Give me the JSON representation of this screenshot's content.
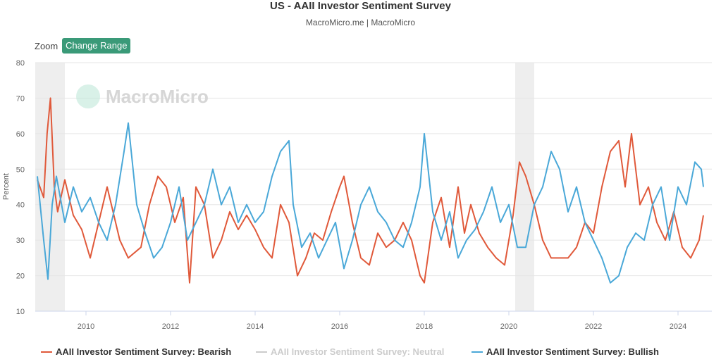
{
  "header": {
    "title": "US - AAII Investor Sentiment Survey",
    "subtitle": "MacroMicro.me | MacroMicro"
  },
  "toolbar": {
    "zoom_label": "Zoom",
    "range_button": "Change Range"
  },
  "watermark": "MacroMicro",
  "colors": {
    "bearish": "#e0593a",
    "neutral": "#cccccc",
    "bullish": "#4aa8d8",
    "accent": "#3a9a78",
    "shade": "#eeeeee"
  },
  "chart_data": {
    "type": "line",
    "title": "US - AAII Investor Sentiment Survey",
    "subtitle": "MacroMicro.me | MacroMicro",
    "xlabel": "",
    "ylabel": "Percent",
    "xlim": [
      2008.8,
      2024.8
    ],
    "ylim": [
      10,
      80
    ],
    "y_ticks": [
      10,
      20,
      30,
      40,
      50,
      60,
      70,
      80
    ],
    "x_ticks": [
      "2010",
      "2012",
      "2014",
      "2016",
      "2018",
      "2020",
      "2022",
      "2024"
    ],
    "grid": true,
    "legend_position": "bottom",
    "shaded_periods": [
      {
        "start": 2008.8,
        "end": 2009.5
      },
      {
        "start": 2020.15,
        "end": 2020.6
      }
    ],
    "series": [
      {
        "name": "AAII Investor Sentiment Survey: Bearish",
        "visible": true,
        "x": [
          2008.85,
          2009.0,
          2009.08,
          2009.16,
          2009.25,
          2009.33,
          2009.5,
          2009.7,
          2009.9,
          2010.1,
          2010.3,
          2010.5,
          2010.6,
          2010.8,
          2011.0,
          2011.3,
          2011.5,
          2011.7,
          2011.9,
          2012.1,
          2012.3,
          2012.45,
          2012.6,
          2012.8,
          2013.0,
          2013.2,
          2013.4,
          2013.6,
          2013.8,
          2014.0,
          2014.2,
          2014.4,
          2014.6,
          2014.8,
          2015.0,
          2015.2,
          2015.4,
          2015.6,
          2015.8,
          2016.0,
          2016.1,
          2016.3,
          2016.5,
          2016.7,
          2016.9,
          2017.1,
          2017.3,
          2017.5,
          2017.7,
          2017.9,
          2018.0,
          2018.2,
          2018.4,
          2018.6,
          2018.8,
          2018.95,
          2019.1,
          2019.3,
          2019.5,
          2019.7,
          2019.9,
          2020.1,
          2020.25,
          2020.4,
          2020.6,
          2020.8,
          2021.0,
          2021.2,
          2021.4,
          2021.6,
          2021.8,
          2022.0,
          2022.2,
          2022.4,
          2022.6,
          2022.75,
          2022.9,
          2023.1,
          2023.3,
          2023.5,
          2023.7,
          2023.9,
          2024.1,
          2024.3,
          2024.5,
          2024.6
        ],
        "y": [
          47,
          42,
          60,
          70,
          45,
          38,
          47,
          37,
          33,
          25,
          35,
          45,
          40,
          30,
          25,
          28,
          40,
          48,
          45,
          35,
          42,
          18,
          45,
          40,
          25,
          30,
          38,
          33,
          37,
          33,
          28,
          25,
          40,
          35,
          20,
          25,
          32,
          30,
          38,
          45,
          48,
          35,
          25,
          23,
          32,
          28,
          30,
          35,
          30,
          20,
          18,
          35,
          42,
          28,
          45,
          32,
          40,
          32,
          28,
          25,
          23,
          37,
          52,
          48,
          40,
          30,
          25,
          25,
          25,
          28,
          35,
          32,
          45,
          55,
          58,
          45,
          60,
          40,
          45,
          35,
          30,
          38,
          28,
          25,
          30,
          37
        ]
      },
      {
        "name": "AAII Investor Sentiment Survey: Neutral",
        "visible": false,
        "x": [],
        "y": []
      },
      {
        "name": "AAII Investor Sentiment Survey: Bullish",
        "visible": true,
        "x": [
          2008.85,
          2009.0,
          2009.1,
          2009.2,
          2009.3,
          2009.5,
          2009.7,
          2009.9,
          2010.1,
          2010.3,
          2010.5,
          2010.7,
          2010.9,
          2011.0,
          2011.2,
          2011.4,
          2011.6,
          2011.8,
          2012.0,
          2012.2,
          2012.4,
          2012.6,
          2012.8,
          2013.0,
          2013.2,
          2013.4,
          2013.6,
          2013.8,
          2014.0,
          2014.2,
          2014.4,
          2014.6,
          2014.8,
          2014.9,
          2015.1,
          2015.3,
          2015.5,
          2015.7,
          2015.9,
          2016.1,
          2016.3,
          2016.5,
          2016.7,
          2016.9,
          2017.1,
          2017.3,
          2017.5,
          2017.7,
          2017.9,
          2018.0,
          2018.2,
          2018.4,
          2018.6,
          2018.8,
          2019.0,
          2019.2,
          2019.4,
          2019.6,
          2019.8,
          2020.0,
          2020.2,
          2020.4,
          2020.6,
          2020.8,
          2021.0,
          2021.2,
          2021.4,
          2021.6,
          2021.8,
          2022.0,
          2022.2,
          2022.4,
          2022.6,
          2022.8,
          2023.0,
          2023.2,
          2023.4,
          2023.6,
          2023.8,
          2024.0,
          2024.2,
          2024.4,
          2024.55,
          2024.6
        ],
        "y": [
          48,
          30,
          19,
          40,
          48,
          35,
          45,
          38,
          42,
          35,
          30,
          40,
          55,
          63,
          40,
          32,
          25,
          28,
          35,
          45,
          30,
          35,
          40,
          50,
          40,
          45,
          35,
          40,
          35,
          38,
          48,
          55,
          58,
          40,
          28,
          32,
          25,
          30,
          35,
          22,
          30,
          40,
          45,
          38,
          35,
          30,
          28,
          35,
          45,
          60,
          38,
          30,
          38,
          25,
          30,
          33,
          38,
          45,
          35,
          40,
          28,
          28,
          40,
          45,
          55,
          50,
          38,
          45,
          35,
          30,
          25,
          18,
          20,
          28,
          32,
          30,
          40,
          45,
          30,
          45,
          40,
          52,
          50,
          45
        ]
      }
    ]
  },
  "legend": [
    {
      "label": "AAII Investor Sentiment Survey: Bearish",
      "color": "#e0593a",
      "dim": false
    },
    {
      "label": "AAII Investor Sentiment Survey: Neutral",
      "color": "#cccccc",
      "dim": true
    },
    {
      "label": "AAII Investor Sentiment Survey: Bullish",
      "color": "#4aa8d8",
      "dim": false
    }
  ]
}
